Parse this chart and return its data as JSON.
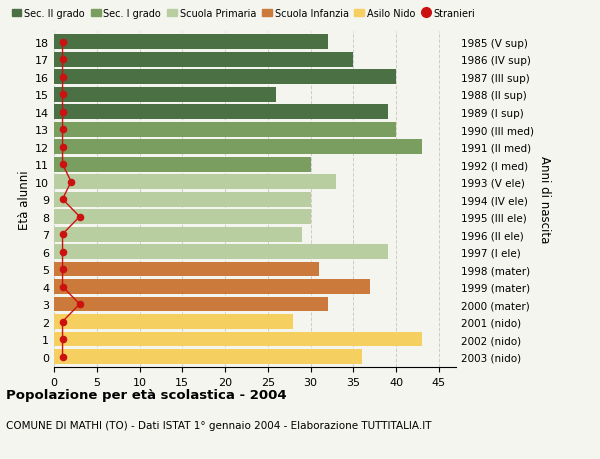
{
  "ages": [
    18,
    17,
    16,
    15,
    14,
    13,
    12,
    11,
    10,
    9,
    8,
    7,
    6,
    5,
    4,
    3,
    2,
    1,
    0
  ],
  "values": [
    32,
    35,
    40,
    26,
    39,
    40,
    43,
    30,
    33,
    30,
    30,
    29,
    39,
    31,
    37,
    32,
    28,
    43,
    36
  ],
  "stranieri": [
    1,
    1,
    1,
    1,
    1,
    1,
    1,
    1,
    2,
    1,
    3,
    1,
    1,
    1,
    1,
    3,
    1,
    1,
    1
  ],
  "categories": {
    "sec2": {
      "ages": [
        18,
        17,
        16,
        15,
        14
      ],
      "color": "#4a7043"
    },
    "sec1": {
      "ages": [
        13,
        12,
        11
      ],
      "color": "#7a9e60"
    },
    "primaria": {
      "ages": [
        10,
        9,
        8,
        7,
        6
      ],
      "color": "#b8cea0"
    },
    "infanzia": {
      "ages": [
        5,
        4,
        3
      ],
      "color": "#cc7a3b"
    },
    "nido": {
      "ages": [
        2,
        1,
        0
      ],
      "color": "#f5d060"
    }
  },
  "right_labels": {
    "18": "1985 (V sup)",
    "17": "1986 (IV sup)",
    "16": "1987 (III sup)",
    "15": "1988 (II sup)",
    "14": "1989 (I sup)",
    "13": "1990 (III med)",
    "12": "1991 (II med)",
    "11": "1992 (I med)",
    "10": "1993 (V ele)",
    "9": "1994 (IV ele)",
    "8": "1995 (III ele)",
    "7": "1996 (II ele)",
    "6": "1997 (I ele)",
    "5": "1998 (mater)",
    "4": "1999 (mater)",
    "3": "2000 (mater)",
    "2": "2001 (nido)",
    "1": "2002 (nido)",
    "0": "2003 (nido)"
  },
  "legend_labels": [
    "Sec. II grado",
    "Sec. I grado",
    "Scuola Primaria",
    "Scuola Infanzia",
    "Asilo Nido",
    "Stranieri"
  ],
  "legend_colors": [
    "#4a7043",
    "#7a9e60",
    "#b8cea0",
    "#cc7a3b",
    "#f5d060",
    "#cc1111"
  ],
  "ylabel_left": "Età alunni",
  "ylabel_right": "Anni di nascita",
  "title": "Popolazione per età scolastica - 2004",
  "subtitle": "COMUNE DI MATHI (TO) - Dati ISTAT 1° gennaio 2004 - Elaborazione TUTTITALIA.IT",
  "xlim": [
    0,
    47
  ],
  "background_color": "#f5f5f0",
  "grid_color": "#cccccc",
  "stranieri_color": "#cc1111"
}
